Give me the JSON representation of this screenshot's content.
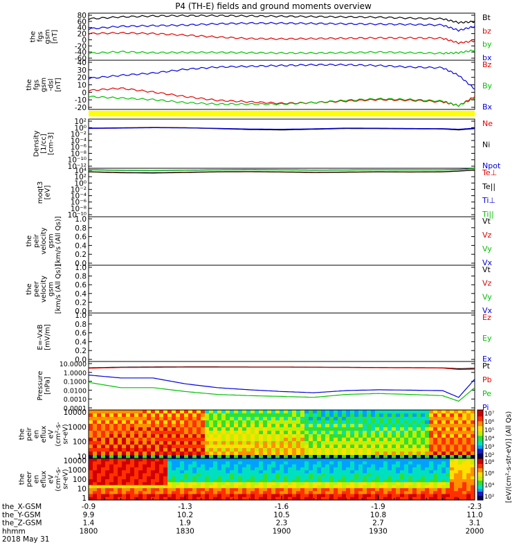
{
  "title": "P4 (TH-E) fields and ground moments overview",
  "colors": {
    "black": "#000000",
    "red": "#e00000",
    "green": "#00c000",
    "blue": "#0000e0",
    "yellow": "#ffff00"
  },
  "panels": [
    {
      "id": "fgs-gsm",
      "ylabel": [
        "the",
        "fgs",
        "gsm",
        "[nT]"
      ],
      "ticks": [
        "80",
        "60",
        "40",
        "20",
        "0",
        "-20",
        "-40",
        "-60"
      ],
      "legend": [
        {
          "text": "Bt",
          "color": "black"
        },
        {
          "text": "bz",
          "color": "red"
        },
        {
          "text": "by",
          "color": "green"
        },
        {
          "text": "bx",
          "color": "blue"
        }
      ]
    },
    {
      "id": "fgs-gsm-dsl",
      "ylabel": [
        "the",
        "fgs",
        "gsm",
        "-dsl",
        "[nT]"
      ],
      "ticks": [
        "40",
        "30",
        "20",
        "10",
        "0",
        "-10",
        "-20"
      ],
      "legend": [
        {
          "text": "Bz",
          "color": "red"
        },
        {
          "text": "By",
          "color": "green"
        },
        {
          "text": "Bx",
          "color": "blue"
        }
      ]
    },
    {
      "id": "density",
      "ylabel": [
        "Density",
        "[1/cc]",
        "[cm-3]"
      ],
      "ticks": [
        "10²",
        "10⁰",
        "10⁻²",
        "10⁻⁴",
        "10⁻⁶",
        "10⁻⁸",
        "10⁻¹⁰",
        "10⁻¹²"
      ],
      "legend": [
        {
          "text": "Ne",
          "color": "red"
        },
        {
          "text": "Ni",
          "color": "black"
        },
        {
          "text": "Npot",
          "color": "blue"
        }
      ]
    },
    {
      "id": "temperature",
      "ylabel": [
        "moqt3",
        "[eV]"
      ],
      "ticks": [
        "10⁴",
        "10²",
        "10⁰",
        "10⁻²",
        "10⁻⁴",
        "10⁻⁶",
        "10⁻⁸",
        "10⁻¹⁰"
      ],
      "legend": [
        {
          "text": "Te⊥",
          "color": "red"
        },
        {
          "text": "Te||",
          "color": "black"
        },
        {
          "text": "Ti⊥",
          "color": "blue"
        },
        {
          "text": "Ti||",
          "color": "green"
        }
      ]
    },
    {
      "id": "peir-velocity",
      "ylabel": [
        "the",
        "peir",
        "velocity",
        "gsm",
        "[km/s (All Qs)]"
      ],
      "ticks": [
        "1.0",
        "0.8",
        "0.6",
        "0.4",
        "0.2",
        "0.0"
      ],
      "legend": [
        {
          "text": "Vt",
          "color": "black"
        },
        {
          "text": "Vz",
          "color": "red"
        },
        {
          "text": "Vy",
          "color": "green"
        },
        {
          "text": "Vx",
          "color": "blue"
        }
      ]
    },
    {
      "id": "peer-velocity",
      "ylabel": [
        "the",
        "peer",
        "velocity",
        "gsm",
        "[km/s (All Qs)]"
      ],
      "ticks": [
        "1.0",
        "0.8",
        "0.6",
        "0.4",
        "0.2",
        "0.0"
      ],
      "legend": [
        {
          "text": "Vt",
          "color": "black"
        },
        {
          "text": "Vz",
          "color": "red"
        },
        {
          "text": "Vy",
          "color": "green"
        },
        {
          "text": "Vx",
          "color": "blue"
        }
      ]
    },
    {
      "id": "efield",
      "ylabel": [
        "E=-VxB",
        "[mV/m]"
      ],
      "ticks": [
        "1.0",
        "0.8",
        "0.6",
        "0.4",
        "0.2",
        "0.0"
      ],
      "legend": [
        {
          "text": "Ez",
          "color": "red"
        },
        {
          "text": "Ey",
          "color": "green"
        },
        {
          "text": "Ex",
          "color": "blue"
        }
      ]
    },
    {
      "id": "pressure",
      "ylabel": [
        "Pressure",
        "[nPa]"
      ],
      "ticks": [
        "10.0000",
        "1.0000",
        "0.1000",
        "0.0100",
        "0.0010",
        "0.0001"
      ],
      "legend": [
        {
          "text": "Pt",
          "color": "black"
        },
        {
          "text": "Pb",
          "color": "red"
        },
        {
          "text": "Pe",
          "color": "green"
        },
        {
          "text": "Pi",
          "color": "blue"
        }
      ]
    },
    {
      "id": "peir-eflux",
      "ylabel": [
        "the",
        "peir",
        "en",
        "eflux",
        "eV",
        "(cm²-s-",
        "sr-eV)"
      ],
      "ticks": [
        "10000",
        "1000",
        "100",
        "10"
      ],
      "legend": []
    },
    {
      "id": "peer-eflux",
      "ylabel": [
        "the",
        "peer",
        "en",
        "eflux",
        "eV",
        "(cm²-s-",
        "sr-eV)"
      ],
      "ticks": [
        "10000",
        "1000",
        "100",
        "10",
        "1"
      ],
      "legend": []
    }
  ],
  "colorbar": {
    "label": "[eV/(cm²-s-str-eV)] (All Qs)",
    "top_ticks": [
      "10⁷",
      "10⁶",
      "10⁵",
      "10⁴",
      "10³",
      "10²"
    ],
    "bottom_ticks": [
      "10⁸",
      "10⁶",
      "10⁴",
      "10²"
    ]
  },
  "xaxis": {
    "row_labels": [
      "the_X-GSM",
      "the_Y-GSM",
      "the_Z-GSM",
      "hhmm",
      "2018 May 31"
    ],
    "columns": [
      {
        "x": "-0.9",
        "y": "9.9",
        "z": "1.4",
        "t": "1800"
      },
      {
        "x": "-1.3",
        "y": "10.2",
        "z": "1.9",
        "t": "1830"
      },
      {
        "x": "-1.6",
        "y": "10.5",
        "z": "2.3",
        "t": "1900"
      },
      {
        "x": "-1.9",
        "y": "10.8",
        "z": "2.7",
        "t": "1930"
      },
      {
        "x": "-2.3",
        "y": "11.0",
        "z": "3.1",
        "t": "2000"
      }
    ]
  },
  "chart_data": [
    {
      "type": "line",
      "panel": "fgs-gsm",
      "ylabel": "the fgs gsm [nT]",
      "ylim": [
        -60,
        90
      ],
      "x": [
        "1800",
        "1810",
        "1820",
        "1830",
        "1840",
        "1850",
        "1900",
        "1910",
        "1920",
        "1930",
        "1940",
        "1950",
        "1955",
        "2000"
      ],
      "series": [
        {
          "name": "Bt",
          "color": "black",
          "values": [
            72,
            78,
            81,
            82,
            82,
            81,
            80,
            79,
            78,
            77,
            74,
            72,
            60,
            63
          ]
        },
        {
          "name": "bz",
          "color": "red",
          "values": [
            25,
            27,
            25,
            20,
            14,
            9,
            8,
            9,
            10,
            11,
            11,
            10,
            -5,
            2
          ]
        },
        {
          "name": "by",
          "color": "green",
          "values": [
            -38,
            -33,
            -36,
            -35,
            -35,
            -36,
            -37,
            -37,
            -36,
            -34,
            -36,
            -38,
            -36,
            -28
          ]
        },
        {
          "name": "bx",
          "color": "blue",
          "values": [
            40,
            48,
            50,
            52,
            56,
            58,
            58,
            57,
            56,
            55,
            54,
            52,
            35,
            48
          ]
        }
      ]
    },
    {
      "type": "line",
      "panel": "fgs-gsm-dsl",
      "ylabel": "the fgs gsm-dsl [nT]",
      "ylim": [
        -25,
        40
      ],
      "x": [
        "1800",
        "1810",
        "1820",
        "1830",
        "1840",
        "1850",
        "1900",
        "1910",
        "1920",
        "1930",
        "1940",
        "1950",
        "1955",
        "2000"
      ],
      "series": [
        {
          "name": "Bz",
          "color": "red",
          "values": [
            0,
            3,
            -2,
            -8,
            -13,
            -15,
            -17,
            -16,
            -14,
            -12,
            -13,
            -15,
            -20,
            -8
          ]
        },
        {
          "name": "By",
          "color": "green",
          "values": [
            -8,
            -10,
            -12,
            -16,
            -18,
            -18,
            -18,
            -16,
            -13,
            -11,
            -12,
            -14,
            -20,
            -10
          ]
        },
        {
          "name": "Bx",
          "color": "blue",
          "values": [
            16,
            20,
            23,
            28,
            31,
            32,
            33,
            34,
            34,
            33,
            31,
            30,
            20,
            2
          ]
        }
      ]
    },
    {
      "type": "line",
      "panel": "density",
      "ylabel": "Density [1/cc] [cm-3]",
      "yscale": "log",
      "ylim": [
        "1e-13",
        "1e3"
      ],
      "x": [
        "1800",
        "1810",
        "1820",
        "1830",
        "1840",
        "1850",
        "1900",
        "1910",
        "1920",
        "1930",
        "1940",
        "1950",
        "1955",
        "2000"
      ],
      "series": [
        {
          "name": "Ne",
          "color": "red",
          "values": [
            1.2,
            1.5,
            2.0,
            1.6,
            0.9,
            0.5,
            0.4,
            0.6,
            1.1,
            1.0,
            0.8,
            0.7,
            0.4,
            1.0
          ]
        },
        {
          "name": "Ni",
          "color": "black",
          "values": [
            1.0,
            1.3,
            1.8,
            1.5,
            0.8,
            0.4,
            0.3,
            0.5,
            0.9,
            0.8,
            0.7,
            0.6,
            0.3,
            0.8
          ]
        },
        {
          "name": "Npot",
          "color": "blue",
          "values": [
            0.9,
            1.2,
            1.6,
            1.4,
            1.0,
            0.6,
            0.5,
            0.7,
            1.2,
            1.1,
            0.9,
            0.8,
            0.5,
            1.2
          ]
        }
      ]
    },
    {
      "type": "line",
      "panel": "temperature",
      "ylabel": "moqt3 [eV]",
      "yscale": "log",
      "ylim": [
        "1e-10",
        "1e4"
      ],
      "x": [
        "1800",
        "1810",
        "1820",
        "1830",
        "1840",
        "1850",
        "1900",
        "1910",
        "1920",
        "1930",
        "1940",
        "1950",
        "1955",
        "2000"
      ],
      "series": [
        {
          "name": "Te⊥",
          "color": "red",
          "values": [
            900,
            500,
            400,
            600,
            900,
            1000,
            800,
            600,
            700,
            900,
            800,
            900,
            1500,
            3000
          ]
        },
        {
          "name": "Te||",
          "color": "black",
          "values": [
            1000,
            600,
            500,
            700,
            1000,
            1100,
            900,
            700,
            800,
            1000,
            900,
            1000,
            1600,
            3200
          ]
        },
        {
          "name": "Ti⊥",
          "color": "blue",
          "values": [
            4000,
            2500,
            2200,
            2800,
            3500,
            4000,
            3500,
            3000,
            3200,
            3500,
            3300,
            3400,
            4500,
            8000
          ]
        },
        {
          "name": "Ti||",
          "color": "green",
          "values": [
            3500,
            2300,
            2000,
            2600,
            3200,
            3600,
            3200,
            2800,
            3000,
            3300,
            3100,
            3200,
            4200,
            7500
          ]
        }
      ]
    },
    {
      "type": "line",
      "panel": "pressure",
      "ylabel": "Pressure [nPa]",
      "yscale": "log",
      "ylim": [
        "1e-4",
        "10"
      ],
      "x": [
        "1800",
        "1810",
        "1820",
        "1830",
        "1840",
        "1850",
        "1900",
        "1910",
        "1920",
        "1930",
        "1940",
        "1950",
        "1955",
        "2000"
      ],
      "series": [
        {
          "name": "Pt",
          "color": "black",
          "values": [
            2.2,
            2.6,
            2.7,
            2.8,
            2.8,
            2.7,
            2.7,
            2.6,
            2.5,
            2.4,
            2.3,
            2.2,
            1.8,
            2.0
          ]
        },
        {
          "name": "Pb",
          "color": "red",
          "values": [
            2.0,
            2.4,
            2.5,
            2.6,
            2.6,
            2.6,
            2.6,
            2.5,
            2.4,
            2.3,
            2.2,
            2.1,
            1.5,
            1.6
          ]
        },
        {
          "name": "Pe",
          "color": "green",
          "values": [
            0.07,
            0.02,
            0.02,
            0.008,
            0.004,
            0.003,
            0.0025,
            0.002,
            0.004,
            0.005,
            0.004,
            0.003,
            0.0008,
            0.02
          ]
        },
        {
          "name": "Pi",
          "color": "blue",
          "values": [
            0.4,
            0.2,
            0.2,
            0.05,
            0.02,
            0.012,
            0.008,
            0.006,
            0.01,
            0.012,
            0.011,
            0.01,
            0.002,
            0.15
          ]
        }
      ]
    },
    {
      "type": "heatmap",
      "panel": "peir-eflux",
      "ylabel": "the peir en eflux eV/(cm²-s-sr-eV)",
      "yscale": "log",
      "ylim": [
        5,
        30000
      ],
      "x": [
        "1800",
        "1830",
        "1900",
        "1930",
        "2000"
      ],
      "colorbar": "[eV/(cm²-s-str-eV)] (All Qs)",
      "zlim": [
        "1e2",
        "1e7"
      ]
    },
    {
      "type": "heatmap",
      "panel": "peer-eflux",
      "ylabel": "the peer en eflux eV/(cm²-s-sr-eV)",
      "yscale": "log",
      "ylim": [
        1,
        20000
      ],
      "x": [
        "1800",
        "1830",
        "1900",
        "1930",
        "2000"
      ],
      "colorbar": "[eV/(cm²-s-str-eV)] (All Qs)",
      "zlim": [
        "1e2",
        "1e8"
      ]
    }
  ]
}
